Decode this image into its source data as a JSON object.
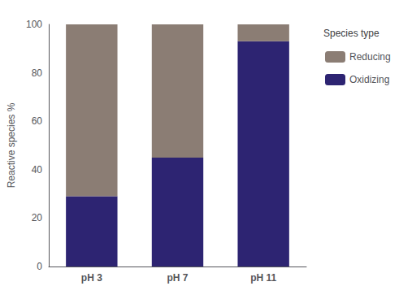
{
  "chart_data": {
    "type": "bar",
    "categories": [
      "pH 3",
      "pH 7",
      "pH 11"
    ],
    "series": [
      {
        "name": "Oxidizing",
        "color": "#2D2472",
        "values": [
          29,
          45,
          93
        ]
      },
      {
        "name": "Reducing",
        "color": "#8B7D74",
        "values": [
          71,
          55,
          7
        ]
      }
    ],
    "stacked": true,
    "ylabel": "Reactive species %",
    "ylim": [
      0,
      100
    ],
    "yticks": [
      0,
      20,
      40,
      60,
      80,
      100
    ],
    "legend": "right",
    "legend_title": "Species type",
    "grid": false
  }
}
